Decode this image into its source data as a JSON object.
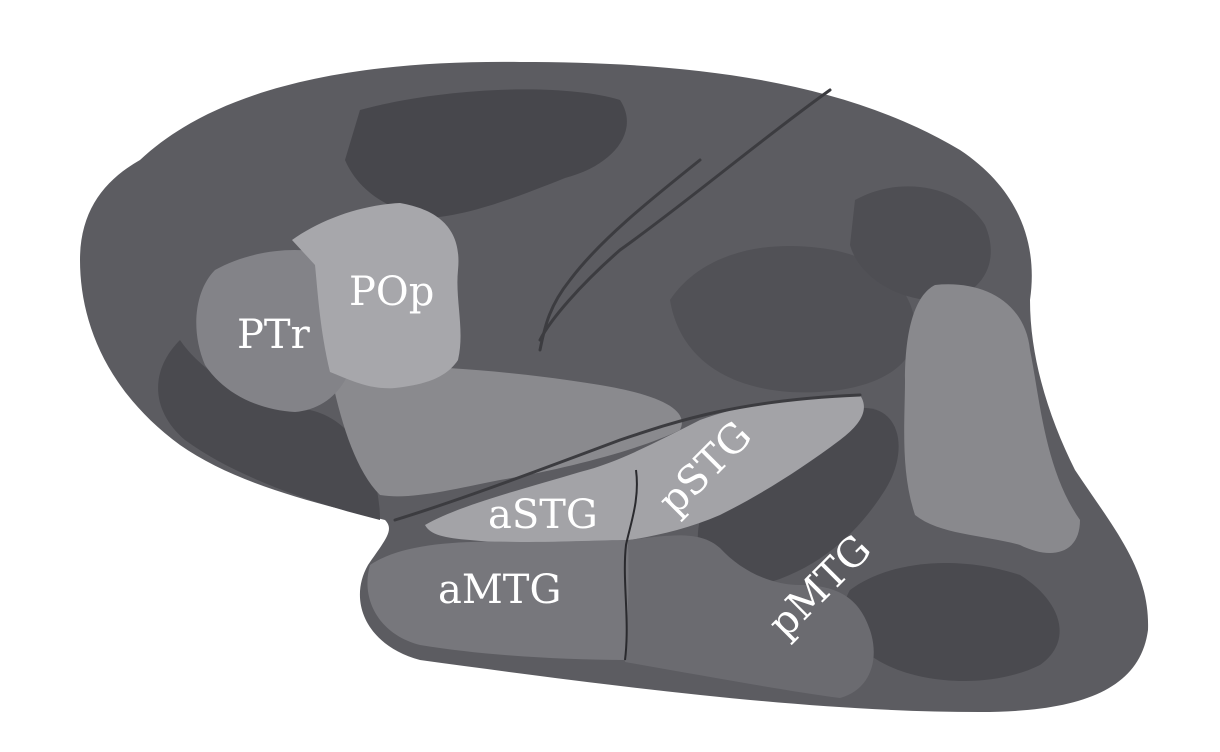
{
  "figure": {
    "regions": [
      {
        "id": "ptr",
        "label": "PTr",
        "shade": "#838388"
      },
      {
        "id": "pop",
        "label": "POp",
        "shade": "#a7a7ab"
      },
      {
        "id": "astg",
        "label": "aSTG",
        "shade": "#a3a3a7"
      },
      {
        "id": "pstg",
        "label": "pSTG",
        "shade": "#a3a3a7"
      },
      {
        "id": "amtg",
        "label": "aMTG",
        "shade": "#77777c"
      },
      {
        "id": "pmtg",
        "label": "pMTG",
        "shade": "#6b6b70"
      }
    ],
    "colors": {
      "background": "#ffffff",
      "cortex_base": "#5c5c61",
      "dark_patch": "#47474c",
      "light_patch": "#8a8a8e",
      "label_text": "#ffffff"
    }
  }
}
